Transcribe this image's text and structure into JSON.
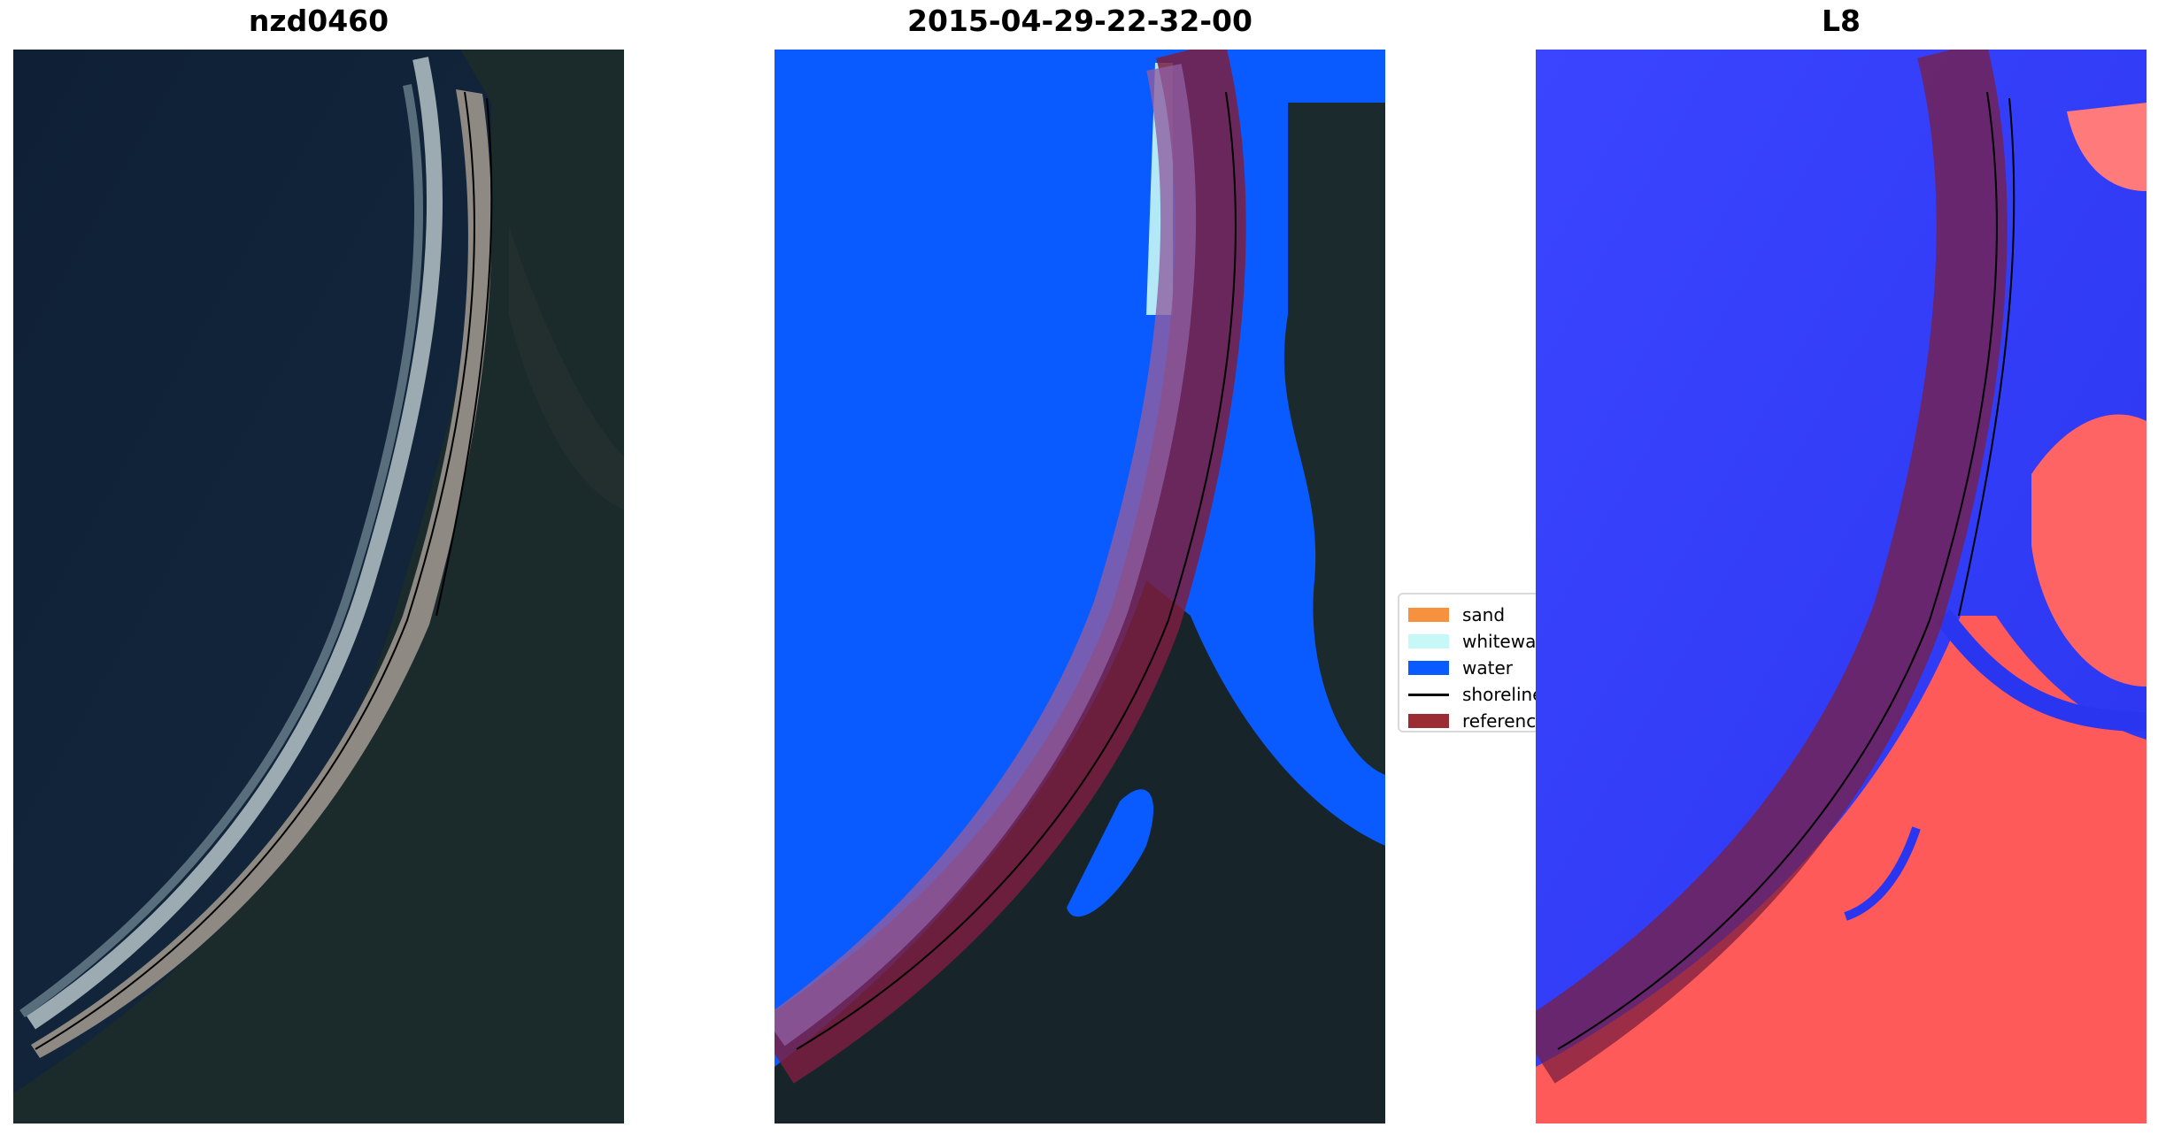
{
  "panels": [
    {
      "title": "nzd0460"
    },
    {
      "title": "2015-04-29-22-32-00"
    },
    {
      "title": "L8"
    }
  ],
  "legend": {
    "items": [
      {
        "label": "sand",
        "color": "#f7913d",
        "kind": "patch"
      },
      {
        "label": "whitewater",
        "color": "#c5f8f6",
        "kind": "patch"
      },
      {
        "label": "water",
        "color": "#0a5bff",
        "kind": "patch"
      },
      {
        "label": "shoreline",
        "color": "#000000",
        "kind": "line"
      },
      {
        "label": "reference",
        "color": "#9b2c33",
        "kind": "patch"
      }
    ]
  },
  "colors": {
    "ocean": "#12233a",
    "land": "#1c2a2c",
    "beach": "#8c8780",
    "classified_water": "#0a5bff",
    "reference_band": "#7a1f40",
    "index_low": "#2f3cff",
    "index_high": "#ff4a4a"
  }
}
